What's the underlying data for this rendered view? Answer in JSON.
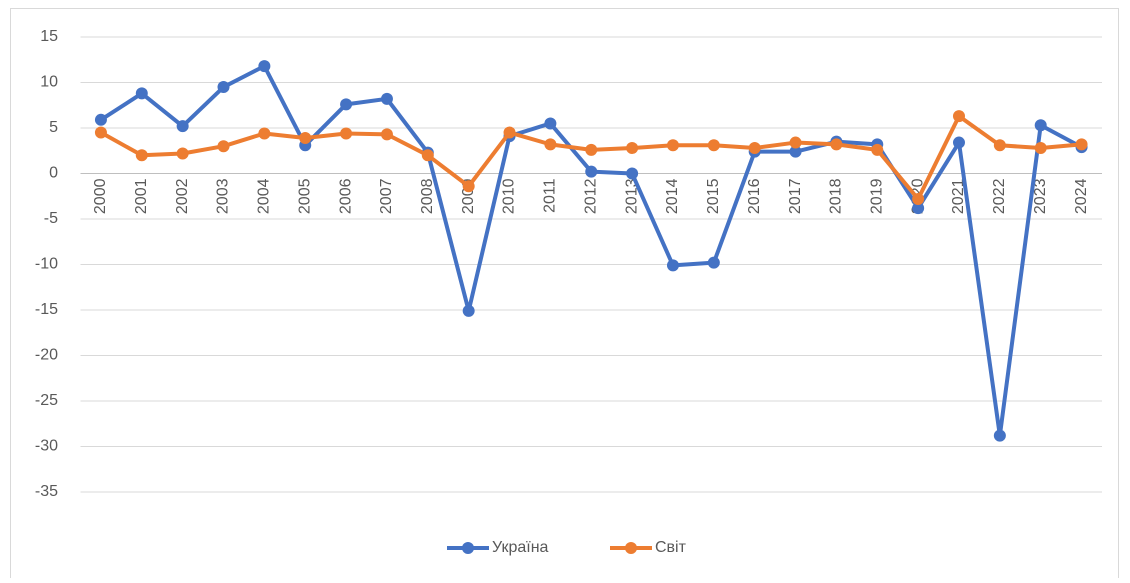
{
  "chart_data": {
    "type": "line",
    "categories": [
      "2000",
      "2001",
      "2002",
      "2003",
      "2004",
      "2005",
      "2006",
      "2007",
      "2008",
      "2009",
      "2010",
      "2011",
      "2012",
      "2013",
      "2014",
      "2015",
      "2016",
      "2017",
      "2018",
      "2019",
      "2020",
      "2021",
      "2022",
      "2023",
      "2024"
    ],
    "series": [
      {
        "name": "Україна",
        "color": "#4472c4",
        "values": [
          5.9,
          8.8,
          5.2,
          9.5,
          11.8,
          3.1,
          7.6,
          8.2,
          2.3,
          -15.1,
          4.1,
          5.5,
          0.2,
          0.0,
          -10.1,
          -9.8,
          2.4,
          2.4,
          3.5,
          3.2,
          -3.8,
          3.4,
          -28.8,
          5.3,
          2.9
        ]
      },
      {
        "name": "Світ",
        "color": "#ed7d31",
        "values": [
          4.5,
          2.0,
          2.2,
          3.0,
          4.4,
          3.9,
          4.4,
          4.3,
          2.0,
          -1.4,
          4.5,
          3.2,
          2.6,
          2.8,
          3.1,
          3.1,
          2.8,
          3.4,
          3.2,
          2.6,
          -2.8,
          6.3,
          3.1,
          2.8,
          3.2
        ]
      }
    ],
    "ylim": [
      -35,
      15
    ],
    "yticks": [
      15,
      10,
      5,
      0,
      -5,
      -10,
      -15,
      -20,
      -25,
      -30,
      -35
    ],
    "grid": true,
    "legend": "bottom"
  }
}
